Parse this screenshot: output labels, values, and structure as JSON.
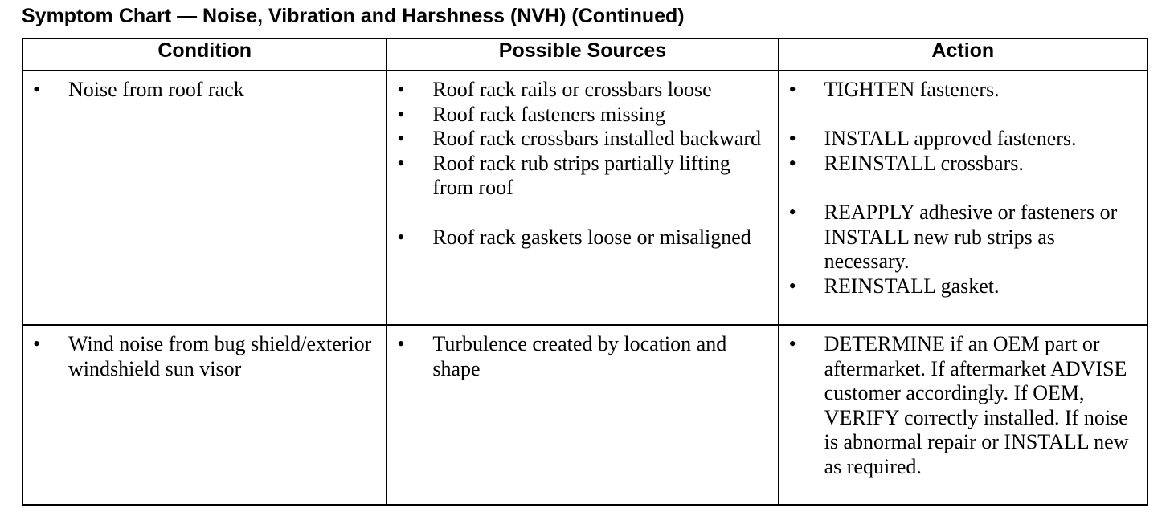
{
  "title": "Symptom Chart — Noise, Vibration and Harshness (NVH) (Continued)",
  "headers": [
    "Condition",
    "Possible Sources",
    "Action"
  ],
  "rows": [
    {
      "condition": [
        "Noise from roof rack"
      ],
      "sources": [
        "Roof rack rails or crossbars loose",
        "Roof rack fasteners missing",
        "Roof rack crossbars installed backward",
        "Roof rack rub strips partially lifting from roof",
        "Roof rack gaskets loose or misaligned"
      ],
      "actions": [
        "TIGHTEN fasteners.",
        "INSTALL approved fasteners.",
        "REINSTALL crossbars.",
        "REAPPLY adhesive or fasteners or INSTALL new rub strips as necessary.",
        "REINSTALL gasket."
      ]
    },
    {
      "condition": [
        "Wind noise from bug shield/exterior windshield sun visor"
      ],
      "sources": [
        "Turbulence created by location and shape"
      ],
      "actions": [
        "DETERMINE if an OEM part or aftermarket. If aftermarket ADVISE customer accordingly. If OEM, VERIFY correctly installed. If noise is abnormal repair or INSTALL new as required."
      ]
    }
  ],
  "bullet": "•"
}
